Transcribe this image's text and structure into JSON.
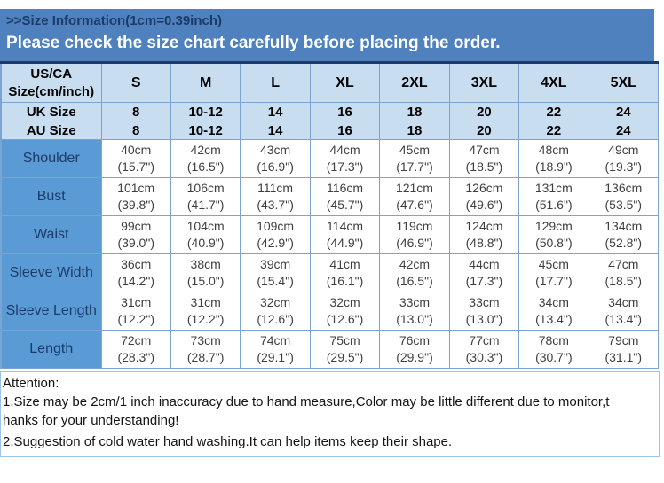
{
  "banner": {
    "title": ">>Size Information(1cm=0.39inch)",
    "subtitle": "Please check the size chart carefully before placing the order."
  },
  "colors": {
    "banner_bg": "#4E81BD",
    "banner_title_text": "#1B3B68",
    "banner_subtitle_text": "#FFFFFF",
    "header_cell_bg": "#C9DDF1",
    "label_cell_bg": "#5B9BD5",
    "label_cell_text": "#1B3B68",
    "cell_border": "#7AA5D3",
    "table_top_border": "#1B3B68",
    "measure_text": "#3F3F3F",
    "attention_border": "#9DC3E6"
  },
  "table": {
    "corner": {
      "line1": "US/CA",
      "line2": "Size(cm/inch)"
    },
    "size_columns": [
      "S",
      "M",
      "L",
      "XL",
      "2XL",
      "3XL",
      "4XL",
      "5XL"
    ],
    "size_rows": [
      {
        "label": "UK Size",
        "values": [
          "8",
          "10-12",
          "14",
          "16",
          "18",
          "20",
          "22",
          "24"
        ]
      },
      {
        "label": "AU Size",
        "values": [
          "8",
          "10-12",
          "14",
          "16",
          "18",
          "20",
          "22",
          "24"
        ]
      }
    ],
    "measure_rows": [
      {
        "label": "Shoulder",
        "cm": [
          "40cm",
          "42cm",
          "43cm",
          "44cm",
          "45cm",
          "47cm",
          "48cm",
          "49cm"
        ],
        "inch": [
          "(15.7\")",
          "(16.5\")",
          "(16.9\")",
          "(17.3\")",
          "(17.7\")",
          "(18.5\")",
          "(18.9\")",
          "(19.3\")"
        ]
      },
      {
        "label": "Bust",
        "cm": [
          "101cm",
          "106cm",
          "111cm",
          "116cm",
          "121cm",
          "126cm",
          "131cm",
          "136cm"
        ],
        "inch": [
          "(39.8\")",
          "(41.7\")",
          "(43.7\")",
          "(45.7\")",
          "(47.6\")",
          "(49.6\")",
          "(51.6\")",
          "(53.5\")"
        ]
      },
      {
        "label": "Waist",
        "cm": [
          "99cm",
          "104cm",
          "109cm",
          "114cm",
          "119cm",
          "124cm",
          "129cm",
          "134cm"
        ],
        "inch": [
          "(39.0\")",
          "(40.9\")",
          "(42.9\")",
          "(44.9\")",
          "(46.9\")",
          "(48.8\")",
          "(50.8\")",
          "(52.8\")"
        ]
      },
      {
        "label": "Sleeve Width",
        "cm": [
          "36cm",
          "38cm",
          "39cm",
          "41cm",
          "42cm",
          "44cm",
          "45cm",
          "47cm"
        ],
        "inch": [
          "(14.2\")",
          "(15.0\")",
          "(15.4\")",
          "(16.1\")",
          "(16.5\")",
          "(17.3\")",
          "(17.7\")",
          "(18.5\")"
        ]
      },
      {
        "label": "Sleeve Length",
        "cm": [
          "31cm",
          "31cm",
          "32cm",
          "32cm",
          "33cm",
          "33cm",
          "34cm",
          "34cm"
        ],
        "inch": [
          "(12.2\")",
          "(12.2\")",
          "(12.6\")",
          "(12.6\")",
          "(13.0\")",
          "(13.0\")",
          "(13.4\")",
          "(13.4\")"
        ]
      },
      {
        "label": "Length",
        "cm": [
          "72cm",
          "73cm",
          "74cm",
          "75cm",
          "76cm",
          "77cm",
          "78cm",
          "79cm"
        ],
        "inch": [
          "(28.3\")",
          "(28.7\")",
          "(29.1\")",
          "(29.5\")",
          "(29.9\")",
          "(30.3\")",
          "(30.7\")",
          "(31.1\")"
        ]
      }
    ]
  },
  "attention": {
    "lines": [
      "Attention:",
      "1.Size may be 2cm/1 inch inaccuracy due to hand measure,Color may be little different due to monitor,t",
      "hanks for your understanding!",
      "2.Suggestion of cold water hand washing.It can help items keep their shape."
    ]
  }
}
